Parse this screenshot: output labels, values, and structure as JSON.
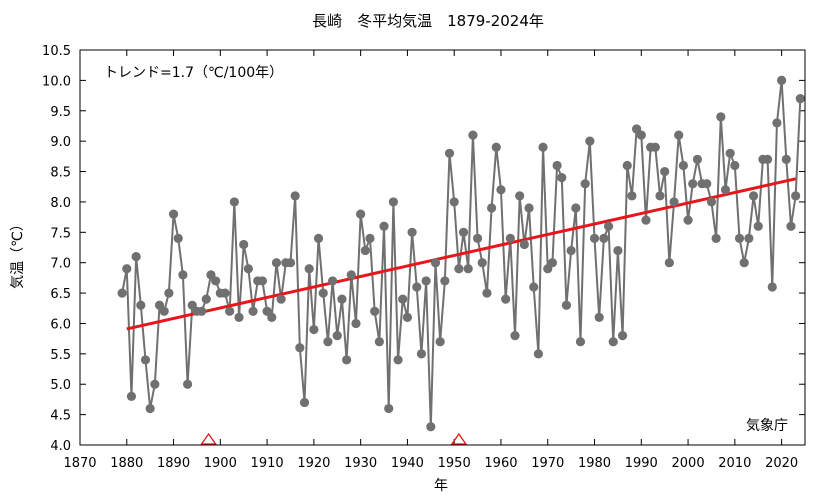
{
  "chart_data": {
    "type": "line",
    "title": "長崎　冬平均気温　1879-2024年",
    "xlabel": "年",
    "ylabel": "気温（℃）",
    "trend_label": "トレンド=1.7（℃/100年）",
    "source_label": "気象庁",
    "xlim": [
      1870,
      2025
    ],
    "ylim": [
      4.0,
      10.5
    ],
    "x_ticks": [
      1870,
      1880,
      1890,
      1900,
      1910,
      1920,
      1930,
      1940,
      1950,
      1960,
      1970,
      1980,
      1990,
      2000,
      2010,
      2020
    ],
    "y_ticks": [
      4.0,
      4.5,
      5.0,
      5.5,
      6.0,
      6.5,
      7.0,
      7.5,
      8.0,
      8.5,
      9.0,
      9.5,
      10.0,
      10.5
    ],
    "grid": false,
    "colors": {
      "series": "#707070",
      "trend": "#e8161b",
      "marker": "#e8161b"
    },
    "series": [
      {
        "x": [
          1879,
          1880,
          1881,
          1882,
          1883,
          1884,
          1885,
          1886,
          1887,
          1888,
          1889,
          1890,
          1891,
          1892,
          1893,
          1894,
          1895,
          1896,
          1897,
          1898,
          1899,
          1900,
          1901,
          1902,
          1903,
          1904,
          1905,
          1906,
          1907,
          1908,
          1909,
          1910,
          1911,
          1912,
          1913,
          1914,
          1915,
          1916,
          1917,
          1918,
          1919,
          1920,
          1921,
          1922,
          1923,
          1924,
          1925,
          1926,
          1927,
          1928,
          1929,
          1930,
          1931,
          1932,
          1933,
          1934,
          1935,
          1936,
          1937,
          1938,
          1939,
          1940,
          1941,
          1942,
          1943,
          1944,
          1945,
          1946,
          1947,
          1948,
          1949,
          1950,
          1951,
          1952,
          1953,
          1954,
          1955,
          1956,
          1957,
          1958,
          1959,
          1960,
          1961,
          1962,
          1963,
          1964,
          1965,
          1966,
          1967,
          1968,
          1969,
          1970,
          1971,
          1972,
          1973,
          1974,
          1975,
          1976,
          1977,
          1978,
          1979,
          1980,
          1981,
          1982,
          1983,
          1984,
          1985,
          1986,
          1987,
          1988,
          1989,
          1990,
          1991,
          1992,
          1993,
          1994,
          1995,
          1996,
          1997,
          1998,
          1999,
          2000,
          2001,
          2002,
          2003,
          2004,
          2005,
          2006,
          2007,
          2008,
          2009,
          2010,
          2011,
          2012,
          2013,
          2014,
          2015,
          2016,
          2017,
          2018,
          2019,
          2020,
          2021,
          2022,
          2023,
          2024
        ],
        "values": [
          6.5,
          6.9,
          4.8,
          7.1,
          6.3,
          5.4,
          4.6,
          5.0,
          6.3,
          6.2,
          6.5,
          7.8,
          7.4,
          6.8,
          5.0,
          6.3,
          6.2,
          6.2,
          6.4,
          6.8,
          6.7,
          6.5,
          6.5,
          6.2,
          8.0,
          6.1,
          7.3,
          6.9,
          6.2,
          6.7,
          6.7,
          6.2,
          6.1,
          7.0,
          6.4,
          7.0,
          7.0,
          8.1,
          5.6,
          4.7,
          6.9,
          5.9,
          7.4,
          6.5,
          5.7,
          6.7,
          5.8,
          6.4,
          5.4,
          6.8,
          6.0,
          7.8,
          7.2,
          7.4,
          6.2,
          5.7,
          7.6,
          4.6,
          8.0,
          5.4,
          6.4,
          6.1,
          7.5,
          6.6,
          5.5,
          6.7,
          4.3,
          7.0,
          5.7,
          6.7,
          8.8,
          8.0,
          6.9,
          7.5,
          6.9,
          9.1,
          7.4,
          7.0,
          6.5,
          7.9,
          8.9,
          8.2,
          6.4,
          7.4,
          5.8,
          8.1,
          7.3,
          7.9,
          6.6,
          5.5,
          8.9,
          6.9,
          7.0,
          8.6,
          8.4,
          6.3,
          7.2,
          7.9,
          5.7,
          8.3,
          9.0,
          7.4,
          6.1,
          7.4,
          7.6,
          5.7,
          7.2,
          5.8,
          8.6,
          8.1,
          9.2,
          9.1,
          7.7,
          8.9,
          8.9,
          8.1,
          8.5,
          7.0,
          8.0,
          9.1,
          8.6,
          7.7,
          8.3,
          8.7,
          8.3,
          8.3,
          8.0,
          7.4,
          9.4,
          8.2,
          8.8,
          8.6,
          7.4,
          7.0,
          7.4,
          8.1,
          7.6,
          8.7,
          8.7,
          6.6,
          9.3,
          10.0,
          8.7,
          7.6,
          8.1,
          9.7
        ]
      }
    ],
    "trend_line": {
      "x": [
        1880,
        2023
      ],
      "y": [
        5.91,
        8.38
      ]
    },
    "markers": {
      "type": "triangle",
      "x": [
        1897.5,
        1951
      ]
    }
  }
}
